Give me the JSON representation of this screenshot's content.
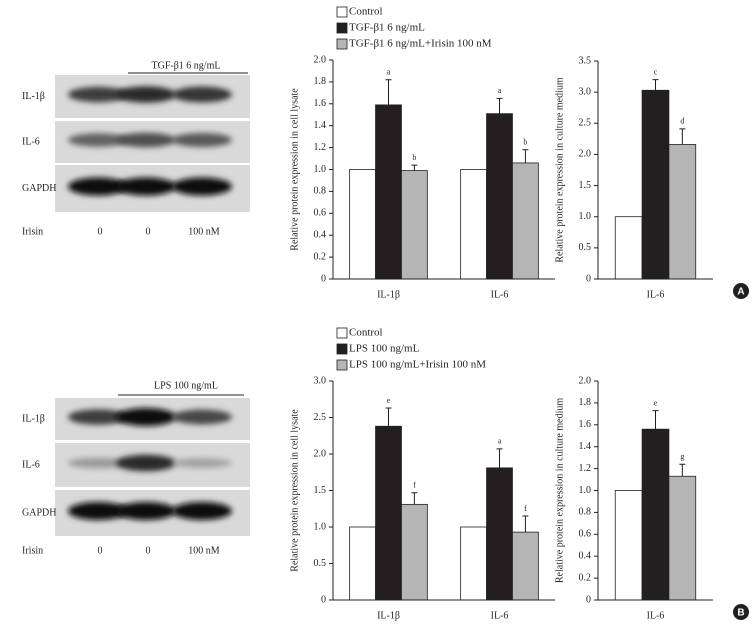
{
  "panels": [
    {
      "letter": "A",
      "treatment": "TGF-β1 6 ng/mL",
      "rows": [
        "IL-1β",
        "IL-6",
        "GAPDH"
      ],
      "lane_row": "Irisin",
      "lanes": [
        "0",
        "0",
        "100 nM"
      ]
    },
    {
      "letter": "B",
      "treatment": "LPS 100 ng/mL",
      "rows": [
        "IL-1β",
        "IL-6",
        "GAPDH"
      ],
      "lane_row": "Irisin",
      "lanes": [
        "0",
        "0",
        "100 nM"
      ]
    }
  ],
  "chart_data": [
    {
      "type": "bar",
      "ylabel": "Relative protein expression in cell lysate",
      "legend": true,
      "categories": [
        "IL-1β",
        "IL-6"
      ],
      "ylim": [
        0,
        2
      ],
      "yticks": [
        0,
        0.2,
        0.4,
        0.6,
        0.8,
        {
          "value": 1,
          "label": "1.0"
        },
        1.2,
        1.4,
        1.6,
        1.8,
        {
          "value": 2,
          "label": "2.0"
        }
      ],
      "series": [
        {
          "name": "Control",
          "color": "#ffffff",
          "values": [
            1,
            1
          ]
        },
        {
          "name": "TGF-β1 6 ng/mL",
          "color": "#231f20",
          "values": [
            1.59,
            1.51
          ],
          "errors": [
            0.23,
            0.14
          ],
          "letters": [
            "a",
            "a"
          ]
        },
        {
          "name": "TGF-β1 6 ng/mL+Irisin 100 nM",
          "color": "#b5b5b5",
          "values": [
            0.99,
            1.06
          ],
          "errors": [
            0.05,
            0.12
          ],
          "letters": [
            "b",
            "b"
          ]
        }
      ]
    },
    {
      "type": "bar",
      "ylabel": "Relative protein expression in culture medium",
      "legend": false,
      "categories": [
        "IL-6"
      ],
      "ylim": [
        0,
        3.5
      ],
      "yticks": [
        0,
        0.5,
        {
          "value": 1,
          "label": "1.0"
        },
        1.5,
        {
          "value": 2,
          "label": "2.0"
        },
        2.5,
        {
          "value": 3,
          "label": "3.0"
        },
        3.5
      ],
      "series": [
        {
          "color": "#ffffff",
          "values": [
            1
          ]
        },
        {
          "color": "#231f20",
          "values": [
            3.03
          ],
          "errors": [
            0.17
          ],
          "letters": [
            "c"
          ]
        },
        {
          "color": "#b5b5b5",
          "values": [
            2.16
          ],
          "errors": [
            0.25
          ],
          "letters": [
            "d"
          ]
        }
      ]
    },
    {
      "type": "bar",
      "ylabel": "Relative protein expression in cell lysate",
      "legend": true,
      "categories": [
        "IL-1β",
        "IL-6"
      ],
      "ylim": [
        0,
        3
      ],
      "yticks": [
        0,
        0.5,
        {
          "value": 1,
          "label": "1.0"
        },
        1.5,
        {
          "value": 2,
          "label": "2.0"
        },
        2.5,
        {
          "value": 3,
          "label": "3.0"
        }
      ],
      "series": [
        {
          "name": "Control",
          "color": "#ffffff",
          "values": [
            1,
            1
          ]
        },
        {
          "name": "LPS 100 ng/mL",
          "color": "#231f20",
          "values": [
            2.38,
            1.81
          ],
          "errors": [
            0.25,
            0.26
          ],
          "letters": [
            "e",
            "a"
          ]
        },
        {
          "name": "LPS 100 ng/mL+Irisin 100 nM",
          "color": "#b5b5b5",
          "values": [
            1.31,
            0.93
          ],
          "errors": [
            0.16,
            0.22
          ],
          "letters": [
            "f",
            "f"
          ]
        }
      ]
    },
    {
      "type": "bar",
      "ylabel": "Relative protein expression in culture medium",
      "legend": false,
      "categories": [
        "IL-6"
      ],
      "ylim": [
        0,
        2
      ],
      "yticks": [
        0,
        0.2,
        0.4,
        0.6,
        0.8,
        {
          "value": 1,
          "label": "1.0"
        },
        1.2,
        1.4,
        1.6,
        1.8,
        {
          "value": 2,
          "label": "2.0"
        }
      ],
      "series": [
        {
          "color": "#ffffff",
          "values": [
            1
          ]
        },
        {
          "color": "#231f20",
          "values": [
            1.56
          ],
          "errors": [
            0.17
          ],
          "letters": [
            "e"
          ]
        },
        {
          "color": "#b5b5b5",
          "values": [
            1.13
          ],
          "errors": [
            0.11
          ],
          "letters": [
            "g"
          ]
        }
      ]
    }
  ]
}
